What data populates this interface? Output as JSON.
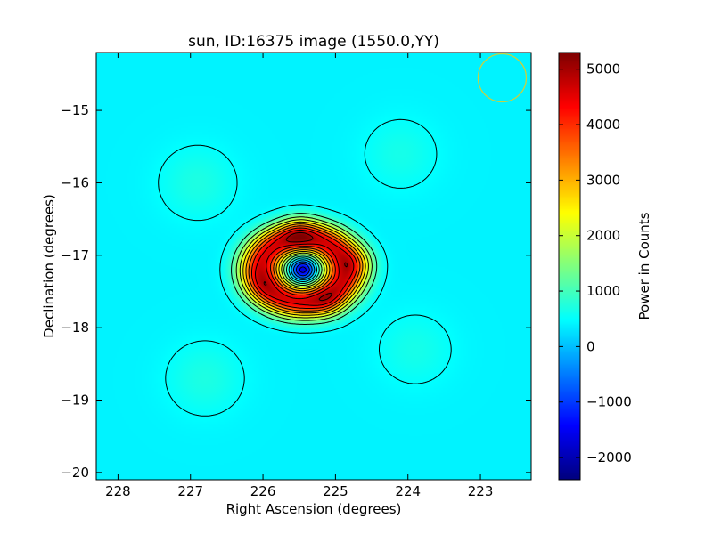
{
  "chart_data": {
    "type": "heatmap",
    "title": "sun, ID:16375 image (1550.0,YY)",
    "xlabel": "Right Ascension (degrees)",
    "ylabel": "Declination (degrees)",
    "xlim": [
      228.3,
      222.3
    ],
    "ylim": [
      -20.1,
      -14.2
    ],
    "xticks": [
      228,
      227,
      226,
      225,
      224,
      223
    ],
    "xtick_labels": [
      "228",
      "227",
      "226",
      "225",
      "224",
      "223"
    ],
    "yticks": [
      -15,
      -16,
      -17,
      -18,
      -19,
      -20
    ],
    "ytick_labels": [
      "−15",
      "−16",
      "−17",
      "−18",
      "−19",
      "−20"
    ],
    "colorbar": {
      "label": "Power in Counts",
      "range": [
        -2400,
        5300
      ],
      "ticks": [
        5000,
        4000,
        3000,
        2000,
        1000,
        0,
        -1000,
        -2000
      ],
      "tick_labels": [
        "5000",
        "4000",
        "3000",
        "2000",
        "1000",
        "0",
        "−1000",
        "−2000"
      ],
      "colormap": "jet"
    },
    "background_level": 400,
    "sidelobes": [
      {
        "ra": 226.9,
        "dec": -16.0,
        "value": 700
      },
      {
        "ra": 224.1,
        "dec": -15.6,
        "value": 650
      },
      {
        "ra": 226.8,
        "dec": -18.7,
        "value": 700
      },
      {
        "ra": 223.9,
        "dec": -18.3,
        "value": 650
      }
    ],
    "source": {
      "center_ra": 225.45,
      "center_dec": -17.2,
      "ring_peak": 4600,
      "central_dip": -1800,
      "hotspots": [
        {
          "ra": 225.5,
          "dec": -16.7,
          "value": 5200
        },
        {
          "ra": 224.7,
          "dec": -17.1,
          "value": 5100
        },
        {
          "ra": 225.1,
          "dec": -17.65,
          "value": 5000
        },
        {
          "ra": 226.0,
          "dec": -17.4,
          "value": 4900
        }
      ]
    },
    "contour_levels": [
      500,
      1000,
      1500,
      2000,
      2500,
      3000,
      3500,
      4000,
      4500,
      5000,
      0,
      -500,
      -1000,
      -1500
    ],
    "beam_marker": {
      "ra": 222.7,
      "dec": -14.55,
      "color": "#c8d040"
    },
    "grid": false
  }
}
